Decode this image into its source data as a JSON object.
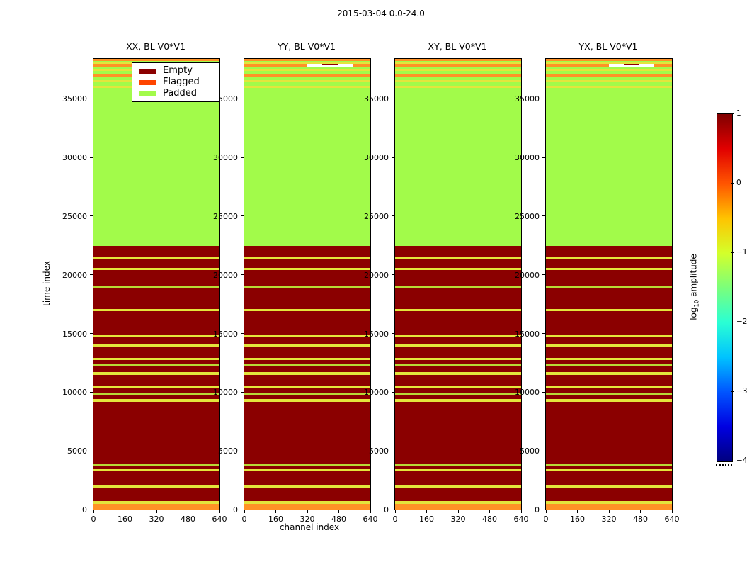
{
  "chart_data": {
    "type": "heatmap",
    "title": "2015-03-04 0.0-24.0",
    "xlabel": "channel index",
    "ylabel": "time index",
    "x_range": [
      0,
      640
    ],
    "y_range": [
      0,
      38400
    ],
    "x_ticks": [
      0,
      160,
      320,
      480,
      640
    ],
    "y_ticks": [
      0,
      5000,
      10000,
      15000,
      20000,
      25000,
      30000,
      35000
    ],
    "panels": [
      {
        "title": "XX, BL V0*V1",
        "overlays": []
      },
      {
        "title": "YY, BL V0*V1",
        "overlays": [
          {
            "y0": 37760,
            "y1": 37940,
            "x0": 0.5,
            "x1": 0.86,
            "color": "#ffffff"
          },
          {
            "y0": 37860,
            "y1": 37905,
            "x0": 0.62,
            "x1": 0.74,
            "color": "#8b0000"
          }
        ]
      },
      {
        "title": "XY, BL V0*V1",
        "overlays": []
      },
      {
        "title": "YX, BL V0*V1",
        "overlays": [
          {
            "y0": 37760,
            "y1": 37940,
            "x0": 0.5,
            "x1": 0.86,
            "color": "#ffffff"
          },
          {
            "y0": 37860,
            "y1": 37905,
            "x0": 0.62,
            "x1": 0.74,
            "color": "#8b0000"
          }
        ]
      }
    ],
    "legend": [
      {
        "label": "Empty",
        "color": "#8b0000"
      },
      {
        "label": "Flagged",
        "color": "#ff4500"
      },
      {
        "label": "Padded",
        "color": "#a2fb4a"
      }
    ],
    "colorbar": {
      "label_prefix": "log",
      "label_sub": "10",
      "label_suffix": " amplitude",
      "ticks": [
        1,
        0,
        -1,
        -2,
        -3,
        -4
      ],
      "vmin": -4,
      "vmax": 1,
      "cmap": "jet",
      "gradient": [
        [
          "#00007f",
          0
        ],
        [
          "#0000e1",
          10
        ],
        [
          "#0055ff",
          20
        ],
        [
          "#00c3ff",
          30
        ],
        [
          "#2affd4",
          40
        ],
        [
          "#7bff7b",
          50
        ],
        [
          "#d4ff2a",
          60
        ],
        [
          "#ffc300",
          70
        ],
        [
          "#ff5500",
          80
        ],
        [
          "#e10000",
          90
        ],
        [
          "#7f0000",
          100
        ]
      ]
    },
    "band_colors": {
      "e": "#8b0000",
      "p": "#a2fb4a",
      "y": "#e3e53c",
      "g": "#b8d936",
      "o": "#ff9226"
    },
    "band_color_names": {
      "e": "empty",
      "p": "padded",
      "y": "flagged-yellow",
      "g": "flagged-olive",
      "o": "flagged-orange"
    },
    "bands_format": [
      "time_from",
      "time_to",
      "color_key"
    ],
    "bands": [
      [
        0,
        500,
        "o"
      ],
      [
        500,
        700,
        "y"
      ],
      [
        700,
        1900,
        "e"
      ],
      [
        1900,
        2080,
        "y"
      ],
      [
        2080,
        3280,
        "e"
      ],
      [
        3280,
        3460,
        "y"
      ],
      [
        3460,
        3700,
        "e"
      ],
      [
        3700,
        3880,
        "g"
      ],
      [
        3880,
        9200,
        "e"
      ],
      [
        9200,
        9430,
        "y"
      ],
      [
        9430,
        9760,
        "e"
      ],
      [
        9760,
        9950,
        "g"
      ],
      [
        9950,
        10400,
        "e"
      ],
      [
        10400,
        10590,
        "y"
      ],
      [
        10590,
        11500,
        "e"
      ],
      [
        11500,
        11690,
        "y"
      ],
      [
        11690,
        12200,
        "e"
      ],
      [
        12200,
        12380,
        "g"
      ],
      [
        12380,
        12760,
        "e"
      ],
      [
        12760,
        12940,
        "y"
      ],
      [
        12940,
        13850,
        "e"
      ],
      [
        13850,
        14060,
        "y"
      ],
      [
        14060,
        14660,
        "e"
      ],
      [
        14660,
        14850,
        "y"
      ],
      [
        14850,
        16900,
        "e"
      ],
      [
        16900,
        17100,
        "y"
      ],
      [
        17100,
        18850,
        "e"
      ],
      [
        18850,
        19030,
        "g"
      ],
      [
        19030,
        20400,
        "e"
      ],
      [
        20400,
        20580,
        "y"
      ],
      [
        20580,
        21350,
        "e"
      ],
      [
        21350,
        21530,
        "y"
      ],
      [
        21530,
        22450,
        "e"
      ],
      [
        22450,
        35950,
        "p"
      ],
      [
        35950,
        36130,
        "y"
      ],
      [
        36130,
        36430,
        "p"
      ],
      [
        36430,
        36610,
        "y"
      ],
      [
        36610,
        36900,
        "p"
      ],
      [
        36900,
        37080,
        "o"
      ],
      [
        37080,
        37350,
        "p"
      ],
      [
        37350,
        37530,
        "y"
      ],
      [
        37530,
        37760,
        "p"
      ],
      [
        37760,
        37940,
        "o"
      ],
      [
        37940,
        38090,
        "y"
      ],
      [
        38090,
        38210,
        "p"
      ],
      [
        38210,
        38400,
        "o"
      ]
    ]
  }
}
